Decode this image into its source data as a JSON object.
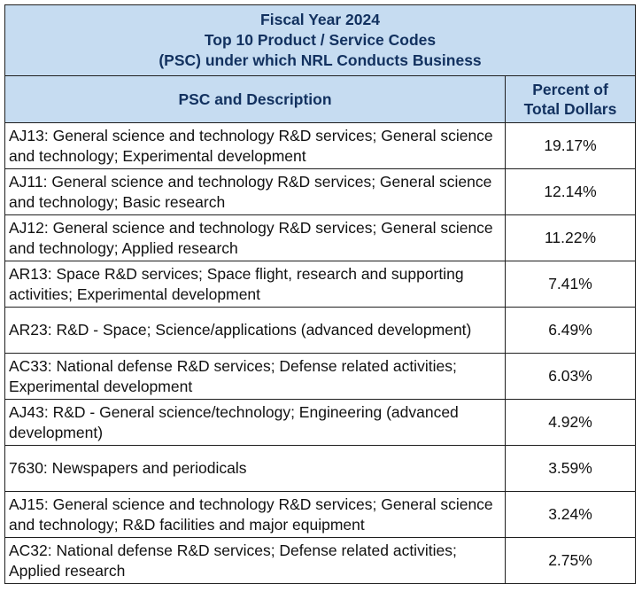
{
  "table": {
    "title_lines": [
      "Fiscal Year 2024",
      "Top 10 Product / Service Codes",
      "(PSC) under which NRL Conducts Business"
    ],
    "header": {
      "col1": "PSC and Description",
      "col2_lines": [
        "Percent of",
        "Total Dollars"
      ]
    },
    "rows": [
      {
        "desc": "AJ13:  General science and technology R&D services; General science and technology; Experimental development",
        "pct": "19.17%"
      },
      {
        "desc": "AJ11:  General science and technology R&D services; General science and technology; Basic research",
        "pct": "12.14%"
      },
      {
        "desc": "AJ12:  General science and technology R&D services; General science and technology; Applied research",
        "pct": "11.22%"
      },
      {
        "desc": "AR13:  Space R&D services; Space flight, research and supporting activities; Experimental development",
        "pct": "7.41%"
      },
      {
        "desc": "AR23:  R&D - Space; Science/applications (advanced development)",
        "pct": "6.49%"
      },
      {
        "desc": "AC33:  National defense R&D services; Defense related activities; Experimental development",
        "pct": "6.03%"
      },
      {
        "desc": "AJ43:  R&D - General science/technology; Engineering (advanced development)",
        "pct": "4.92%"
      },
      {
        "desc": "7630:  Newspapers and periodicals",
        "pct": "3.59%"
      },
      {
        "desc": "AJ15:  General science and technology R&D services; General science and technology; R&D facilities and major equipment",
        "pct": "3.24%"
      },
      {
        "desc": "AC32:  National defense R&D services; Defense related activities; Applied research",
        "pct": "2.75%"
      }
    ]
  }
}
